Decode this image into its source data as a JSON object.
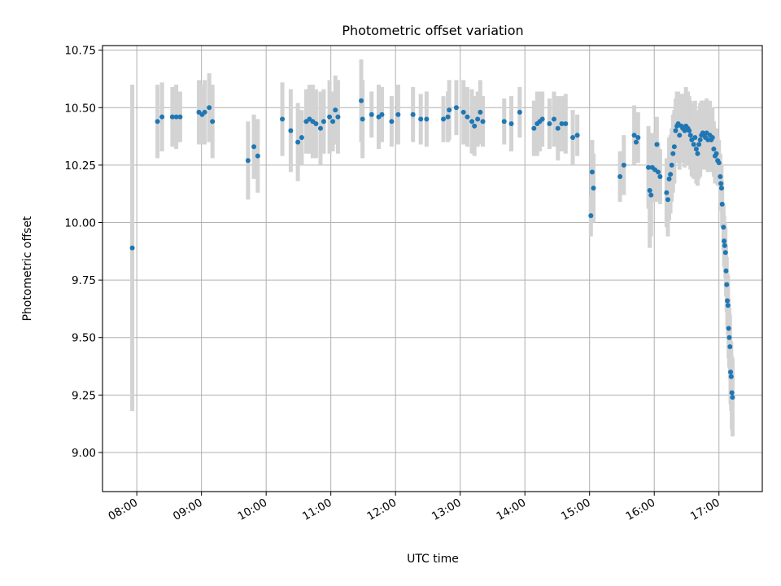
{
  "chart_data": {
    "type": "scatter",
    "title": "Photometric offset variation",
    "xlabel": "UTC time",
    "ylabel": "Photometric offset",
    "x_unit": "hours UTC",
    "xlim": [
      7.47,
      17.67
    ],
    "ylim": [
      8.83,
      10.77
    ],
    "x_ticks": [
      {
        "value": 8,
        "label": "08:00"
      },
      {
        "value": 9,
        "label": "09:00"
      },
      {
        "value": 10,
        "label": "10:00"
      },
      {
        "value": 11,
        "label": "11:00"
      },
      {
        "value": 12,
        "label": "12:00"
      },
      {
        "value": 13,
        "label": "13:00"
      },
      {
        "value": 14,
        "label": "14:00"
      },
      {
        "value": 15,
        "label": "15:00"
      },
      {
        "value": 16,
        "label": "16:00"
      },
      {
        "value": 17,
        "label": "17:00"
      }
    ],
    "y_ticks": [
      {
        "value": 9.0,
        "label": "9.00"
      },
      {
        "value": 9.25,
        "label": "9.25"
      },
      {
        "value": 9.5,
        "label": "9.50"
      },
      {
        "value": 9.75,
        "label": "9.75"
      },
      {
        "value": 10.0,
        "label": "10.00"
      },
      {
        "value": 10.25,
        "label": "10.25"
      },
      {
        "value": 10.5,
        "label": "10.50"
      },
      {
        "value": 10.75,
        "label": "10.75"
      }
    ],
    "grid": true,
    "point_color": "#1f77b4",
    "errorbar_color": "#d3d3d3",
    "points": [
      [
        7.93,
        9.89,
        0.71
      ],
      [
        8.32,
        10.44,
        0.16
      ],
      [
        8.39,
        10.46,
        0.15
      ],
      [
        8.55,
        10.46,
        0.13
      ],
      [
        8.61,
        10.46,
        0.14
      ],
      [
        8.67,
        10.46,
        0.11
      ],
      [
        8.96,
        10.48,
        0.14
      ],
      [
        9.01,
        10.47,
        0.13
      ],
      [
        9.05,
        10.48,
        0.14
      ],
      [
        9.12,
        10.5,
        0.15
      ],
      [
        9.17,
        10.44,
        0.16
      ],
      [
        9.72,
        10.27,
        0.17
      ],
      [
        9.81,
        10.33,
        0.14
      ],
      [
        9.87,
        10.29,
        0.16
      ],
      [
        10.25,
        10.45,
        0.16
      ],
      [
        10.38,
        10.4,
        0.18
      ],
      [
        10.49,
        10.35,
        0.17
      ],
      [
        10.55,
        10.37,
        0.12
      ],
      [
        10.62,
        10.44,
        0.14
      ],
      [
        10.67,
        10.45,
        0.15
      ],
      [
        10.72,
        10.44,
        0.16
      ],
      [
        10.77,
        10.43,
        0.15
      ],
      [
        10.84,
        10.41,
        0.16
      ],
      [
        10.89,
        10.44,
        0.14
      ],
      [
        10.98,
        10.46,
        0.16
      ],
      [
        11.03,
        10.44,
        0.13
      ],
      [
        11.07,
        10.49,
        0.15
      ],
      [
        11.11,
        10.46,
        0.16
      ],
      [
        11.47,
        10.53,
        0.18
      ],
      [
        11.49,
        10.45,
        0.17
      ],
      [
        11.63,
        10.47,
        0.1
      ],
      [
        11.74,
        10.46,
        0.14
      ],
      [
        11.79,
        10.47,
        0.12
      ],
      [
        11.94,
        10.44,
        0.11
      ],
      [
        12.04,
        10.47,
        0.13
      ],
      [
        12.27,
        10.47,
        0.12
      ],
      [
        12.39,
        10.45,
        0.11
      ],
      [
        12.48,
        10.45,
        0.12
      ],
      [
        12.74,
        10.45,
        0.1
      ],
      [
        12.81,
        10.46,
        0.11
      ],
      [
        12.83,
        10.49,
        0.13
      ],
      [
        12.94,
        10.5,
        0.12
      ],
      [
        13.05,
        10.48,
        0.14
      ],
      [
        13.11,
        10.46,
        0.13
      ],
      [
        13.18,
        10.44,
        0.14
      ],
      [
        13.22,
        10.42,
        0.13
      ],
      [
        13.27,
        10.45,
        0.12
      ],
      [
        13.31,
        10.48,
        0.14
      ],
      [
        13.35,
        10.44,
        0.11
      ],
      [
        13.68,
        10.44,
        0.1
      ],
      [
        13.79,
        10.43,
        0.12
      ],
      [
        13.92,
        10.48,
        0.11
      ],
      [
        14.14,
        10.41,
        0.12
      ],
      [
        14.19,
        10.43,
        0.14
      ],
      [
        14.23,
        10.44,
        0.13
      ],
      [
        14.27,
        10.45,
        0.12
      ],
      [
        14.38,
        10.43,
        0.11
      ],
      [
        14.45,
        10.45,
        0.12
      ],
      [
        14.51,
        10.41,
        0.14
      ],
      [
        14.57,
        10.43,
        0.12
      ],
      [
        14.63,
        10.43,
        0.13
      ],
      [
        14.74,
        10.37,
        0.12
      ],
      [
        14.81,
        10.38,
        0.09
      ],
      [
        15.02,
        10.03,
        0.09
      ],
      [
        15.04,
        10.22,
        0.14
      ],
      [
        15.06,
        10.15,
        0.15
      ],
      [
        15.47,
        10.2,
        0.11
      ],
      [
        15.53,
        10.25,
        0.13
      ],
      [
        15.69,
        10.38,
        0.13
      ],
      [
        15.72,
        10.35,
        0.08
      ],
      [
        15.75,
        10.37,
        0.11
      ],
      [
        15.91,
        10.24,
        0.18
      ],
      [
        15.93,
        10.14,
        0.25
      ],
      [
        15.95,
        10.12,
        0.18
      ],
      [
        15.97,
        10.24,
        0.15
      ],
      [
        16.01,
        10.23,
        0.14
      ],
      [
        16.04,
        10.34,
        0.12
      ],
      [
        16.06,
        10.22,
        0.13
      ],
      [
        16.09,
        10.2,
        0.12
      ],
      [
        16.19,
        10.13,
        0.15
      ],
      [
        16.21,
        10.1,
        0.16
      ],
      [
        16.23,
        10.19,
        0.18
      ],
      [
        16.25,
        10.21,
        0.17
      ],
      [
        16.27,
        10.25,
        0.16
      ],
      [
        16.29,
        10.3,
        0.17
      ],
      [
        16.31,
        10.33,
        0.16
      ],
      [
        16.33,
        10.4,
        0.14
      ],
      [
        16.35,
        10.42,
        0.15
      ],
      [
        16.37,
        10.43,
        0.14
      ],
      [
        16.39,
        10.38,
        0.15
      ],
      [
        16.42,
        10.42,
        0.14
      ],
      [
        16.44,
        10.41,
        0.15
      ],
      [
        16.47,
        10.4,
        0.16
      ],
      [
        16.49,
        10.42,
        0.17
      ],
      [
        16.52,
        10.41,
        0.16
      ],
      [
        16.54,
        10.4,
        0.15
      ],
      [
        16.56,
        10.38,
        0.15
      ],
      [
        16.58,
        10.36,
        0.16
      ],
      [
        16.61,
        10.34,
        0.15
      ],
      [
        16.63,
        10.37,
        0.16
      ],
      [
        16.65,
        10.32,
        0.15
      ],
      [
        16.67,
        10.3,
        0.14
      ],
      [
        16.69,
        10.34,
        0.15
      ],
      [
        16.71,
        10.36,
        0.16
      ],
      [
        16.73,
        10.38,
        0.15
      ],
      [
        16.75,
        10.39,
        0.14
      ],
      [
        16.77,
        10.38,
        0.15
      ],
      [
        16.79,
        10.37,
        0.14
      ],
      [
        16.81,
        10.39,
        0.15
      ],
      [
        16.83,
        10.36,
        0.14
      ],
      [
        16.86,
        10.38,
        0.15
      ],
      [
        16.88,
        10.36,
        0.14
      ],
      [
        16.9,
        10.37,
        0.13
      ],
      [
        16.92,
        10.32,
        0.12
      ],
      [
        16.94,
        10.29,
        0.12
      ],
      [
        16.96,
        10.3,
        0.11
      ],
      [
        16.98,
        10.27,
        0.11
      ],
      [
        17.0,
        10.26,
        0.1
      ],
      [
        17.02,
        10.2,
        0.1
      ],
      [
        17.03,
        10.17,
        0.09
      ],
      [
        17.04,
        10.15,
        0.1
      ],
      [
        17.05,
        10.08,
        0.1
      ],
      [
        17.07,
        9.98,
        0.1
      ],
      [
        17.08,
        9.92,
        0.11
      ],
      [
        17.09,
        9.9,
        0.1
      ],
      [
        17.1,
        9.87,
        0.11
      ],
      [
        17.11,
        9.79,
        0.11
      ],
      [
        17.12,
        9.73,
        0.12
      ],
      [
        17.13,
        9.66,
        0.12
      ],
      [
        17.14,
        9.64,
        0.13
      ],
      [
        17.15,
        9.54,
        0.13
      ],
      [
        17.16,
        9.5,
        0.13
      ],
      [
        17.17,
        9.46,
        0.14
      ],
      [
        17.18,
        9.35,
        0.14
      ],
      [
        17.19,
        9.33,
        0.15
      ],
      [
        17.2,
        9.26,
        0.16
      ],
      [
        17.21,
        9.24,
        0.17
      ]
    ]
  }
}
